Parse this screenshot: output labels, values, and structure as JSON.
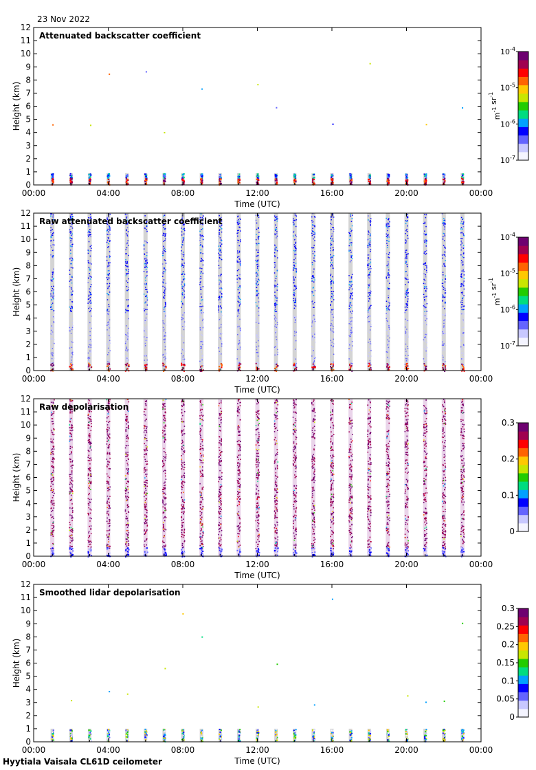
{
  "date": "23 Nov 2022",
  "footer": "Hyytiala Vaisala CL61D ceilometer",
  "colors": {
    "clear_sky_gray": "#d4d4d4",
    "colormap": [
      "#f4f4ff",
      "#c8c8ff",
      "#6464ff",
      "#0000ff",
      "#00a0ff",
      "#00dc80",
      "#22cc00",
      "#c8e600",
      "#ffc800",
      "#ff6400",
      "#ff0000",
      "#a00050",
      "#6e0070"
    ]
  },
  "chart_data": [
    {
      "type": "heatmap",
      "title": "Attenuated backscatter coefficient",
      "xlabel": "Time (UTC)",
      "ylabel": "Height (km)",
      "xticks": [
        "00:00",
        "04:00",
        "08:00",
        "12:00",
        "16:00",
        "20:00",
        "00:00"
      ],
      "xlim": [
        0,
        24
      ],
      "ylim": [
        0,
        12
      ],
      "yticks": [
        "0",
        "1",
        "2",
        "3",
        "4",
        "5",
        "6",
        "7",
        "8",
        "9",
        "10",
        "11",
        "12"
      ],
      "profile_times_h": [
        1,
        2,
        3,
        4,
        5,
        6,
        7,
        8,
        9,
        10,
        11,
        12,
        13,
        14,
        15,
        16,
        17,
        18,
        19,
        20,
        21,
        22,
        23
      ],
      "colorbar": {
        "scale": "log",
        "ticks": [
          "10-7",
          "10-6",
          "10-5",
          "10-4"
        ],
        "unit": "m-1 sr-1"
      },
      "colorbar_ticks_display": [
        {
          "base": "10",
          "exp": "-7"
        },
        {
          "base": "10",
          "exp": "-6"
        },
        {
          "base": "10",
          "exp": "-5"
        },
        {
          "base": "10",
          "exp": "-4"
        }
      ],
      "unit_display": [
        {
          "base": "m",
          "exp": "-1"
        },
        {
          "base": " sr",
          "exp": "-1"
        }
      ],
      "signal_top_km": 0.9,
      "mode": "sparse"
    },
    {
      "type": "heatmap",
      "title": "Raw attenuated backscatter coefficient",
      "xlabel": "Time (UTC)",
      "ylabel": "Height (km)",
      "xticks": [
        "00:00",
        "04:00",
        "08:00",
        "12:00",
        "16:00",
        "20:00",
        "00:00"
      ],
      "xlim": [
        0,
        24
      ],
      "ylim": [
        0,
        12
      ],
      "yticks": [
        "0",
        "1",
        "2",
        "3",
        "4",
        "5",
        "6",
        "7",
        "8",
        "9",
        "10",
        "11",
        "12"
      ],
      "profile_times_h": [
        1,
        2,
        3,
        4,
        5,
        6,
        7,
        8,
        9,
        10,
        11,
        12,
        13,
        14,
        15,
        16,
        17,
        18,
        19,
        20,
        21,
        22,
        23
      ],
      "colorbar": {
        "scale": "log",
        "ticks": [
          "10-7",
          "10-6",
          "10-5",
          "10-4"
        ],
        "unit": "m-1 sr-1"
      },
      "colorbar_ticks_display": [
        {
          "base": "10",
          "exp": "-7"
        },
        {
          "base": "10",
          "exp": "-6"
        },
        {
          "base": "10",
          "exp": "-5"
        },
        {
          "base": "10",
          "exp": "-4"
        }
      ],
      "unit_display": [
        {
          "base": "m",
          "exp": "-1"
        },
        {
          "base": " sr",
          "exp": "-1"
        }
      ],
      "mode": "raw_backscatter"
    },
    {
      "type": "heatmap",
      "title": "Raw depolarisation",
      "xlabel": "Time (UTC)",
      "ylabel": "Height (km)",
      "xticks": [
        "00:00",
        "04:00",
        "08:00",
        "12:00",
        "16:00",
        "20:00",
        "00:00"
      ],
      "xlim": [
        0,
        24
      ],
      "ylim": [
        0,
        12
      ],
      "yticks": [
        "0",
        "1",
        "2",
        "3",
        "4",
        "5",
        "6",
        "7",
        "8",
        "9",
        "10",
        "11",
        "12"
      ],
      "profile_times_h": [
        1,
        2,
        3,
        4,
        5,
        6,
        7,
        8,
        9,
        10,
        11,
        12,
        13,
        14,
        15,
        16,
        17,
        18,
        19,
        20,
        21,
        22,
        23
      ],
      "colorbar": {
        "scale": "linear",
        "range": [
          0,
          0.3
        ],
        "ticks": [
          "0",
          "0.1",
          "0.2",
          "0.3"
        ]
      },
      "mode": "raw_depol"
    },
    {
      "type": "heatmap",
      "title": "Smoothed lidar depolarisation",
      "xlabel": "Time (UTC)",
      "ylabel": "Height (km)",
      "xticks": [
        "00:00",
        "04:00",
        "08:00",
        "12:00",
        "16:00",
        "20:00",
        "00:00"
      ],
      "xlim": [
        0,
        24
      ],
      "ylim": [
        0,
        12
      ],
      "yticks": [
        "0",
        "1",
        "2",
        "3",
        "4",
        "5",
        "6",
        "7",
        "8",
        "9",
        "10",
        "11",
        "12"
      ],
      "profile_times_h": [
        1,
        2,
        3,
        4,
        5,
        6,
        7,
        8,
        9,
        10,
        11,
        12,
        13,
        14,
        15,
        16,
        17,
        18,
        19,
        20,
        21,
        22,
        23
      ],
      "colorbar": {
        "scale": "linear",
        "range": [
          0,
          0.3
        ],
        "ticks": [
          "0",
          "0.05",
          "0.1",
          "0.15",
          "0.2",
          "0.25",
          "0.3"
        ]
      },
      "signal_top_km": 1.0,
      "mode": "sparse_depol"
    }
  ]
}
